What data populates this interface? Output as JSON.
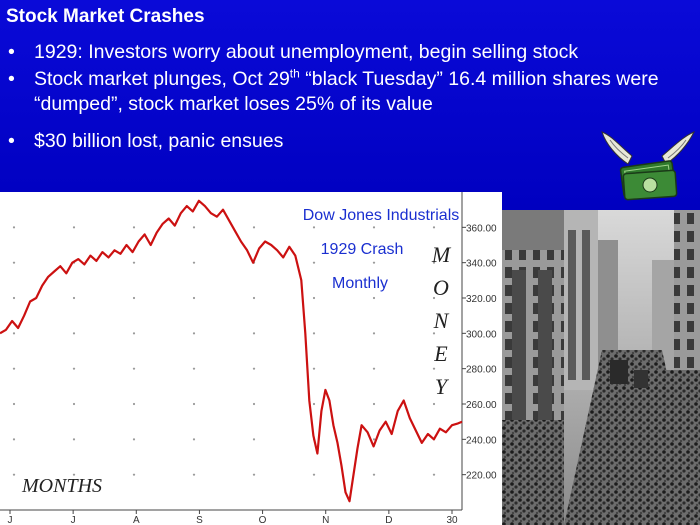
{
  "slide": {
    "title": "Stock Market Crashes",
    "bullets": [
      {
        "text": "1929: Investors worry about unemployment, begin selling stock"
      },
      {
        "pre": "Stock market plunges, Oct 29",
        "sup": "th",
        "post": " “black Tuesday” 16.4 million shares were “dumped”, stock market loses 25% of its value"
      },
      {
        "text": "$30 billion lost, panic ensues"
      }
    ]
  },
  "images": {
    "money_icon": "flying-money-icon",
    "photo": "crowd-on-wall-street-photo"
  },
  "colors": {
    "background": "#0000c0",
    "text": "#ffffff",
    "line": "#cc1111",
    "title_blue": "#1a2fd0"
  },
  "chart_data": {
    "type": "line",
    "title_lines": [
      "Dow Jones Industrials",
      "1929 Crash",
      "Monthly"
    ],
    "side_label": [
      "M",
      "O",
      "N",
      "E",
      "Y"
    ],
    "corner_label": "MONTHS",
    "x_ticks": [
      "J",
      "J",
      "A",
      "S",
      "O",
      "N",
      "D",
      "30"
    ],
    "y_ticks": [
      360,
      340,
      320,
      300,
      280,
      260,
      240,
      220
    ],
    "y_tick_labels": [
      "360.00",
      "340.00",
      "320.00",
      "300.00",
      "280.00",
      "260.00",
      "240.00",
      "220.00"
    ],
    "ylim": [
      200,
      380
    ],
    "xlim": [
      0,
      230
    ],
    "grid": true,
    "series": [
      {
        "values": [
          [
            0,
            300
          ],
          [
            3,
            302
          ],
          [
            6,
            307
          ],
          [
            9,
            303
          ],
          [
            12,
            310
          ],
          [
            15,
            318
          ],
          [
            18,
            320
          ],
          [
            21,
            327
          ],
          [
            24,
            332
          ],
          [
            27,
            335
          ],
          [
            30,
            338
          ],
          [
            33,
            334
          ],
          [
            36,
            340
          ],
          [
            39,
            342
          ],
          [
            42,
            339
          ],
          [
            45,
            344
          ],
          [
            48,
            341
          ],
          [
            51,
            346
          ],
          [
            54,
            343
          ],
          [
            57,
            347
          ],
          [
            60,
            345
          ],
          [
            63,
            350
          ],
          [
            66,
            346
          ],
          [
            69,
            352
          ],
          [
            72,
            356
          ],
          [
            75,
            350
          ],
          [
            78,
            357
          ],
          [
            81,
            362
          ],
          [
            84,
            365
          ],
          [
            87,
            361
          ],
          [
            90,
            368
          ],
          [
            93,
            372
          ],
          [
            96,
            369
          ],
          [
            99,
            375
          ],
          [
            102,
            372
          ],
          [
            105,
            368
          ],
          [
            108,
            366
          ],
          [
            111,
            370
          ],
          [
            114,
            364
          ],
          [
            117,
            358
          ],
          [
            120,
            352
          ],
          [
            123,
            347
          ],
          [
            126,
            340
          ],
          [
            129,
            348
          ],
          [
            132,
            352
          ],
          [
            135,
            350
          ],
          [
            138,
            347
          ],
          [
            141,
            343
          ],
          [
            144,
            349
          ],
          [
            147,
            344
          ],
          [
            150,
            330
          ],
          [
            152,
            300
          ],
          [
            154,
            262
          ],
          [
            156,
            242
          ],
          [
            158,
            232
          ],
          [
            160,
            256
          ],
          [
            162,
            268
          ],
          [
            164,
            262
          ],
          [
            166,
            248
          ],
          [
            168,
            238
          ],
          [
            170,
            225
          ],
          [
            172,
            210
          ],
          [
            174,
            205
          ],
          [
            176,
            220
          ],
          [
            178,
            235
          ],
          [
            180,
            248
          ],
          [
            183,
            244
          ],
          [
            186,
            236
          ],
          [
            189,
            245
          ],
          [
            192,
            250
          ],
          [
            195,
            243
          ],
          [
            198,
            256
          ],
          [
            201,
            262
          ],
          [
            204,
            252
          ],
          [
            207,
            245
          ],
          [
            210,
            238
          ],
          [
            213,
            243
          ],
          [
            216,
            240
          ],
          [
            219,
            246
          ],
          [
            222,
            244
          ],
          [
            225,
            248
          ],
          [
            228,
            249
          ],
          [
            230,
            250
          ]
        ]
      }
    ]
  }
}
